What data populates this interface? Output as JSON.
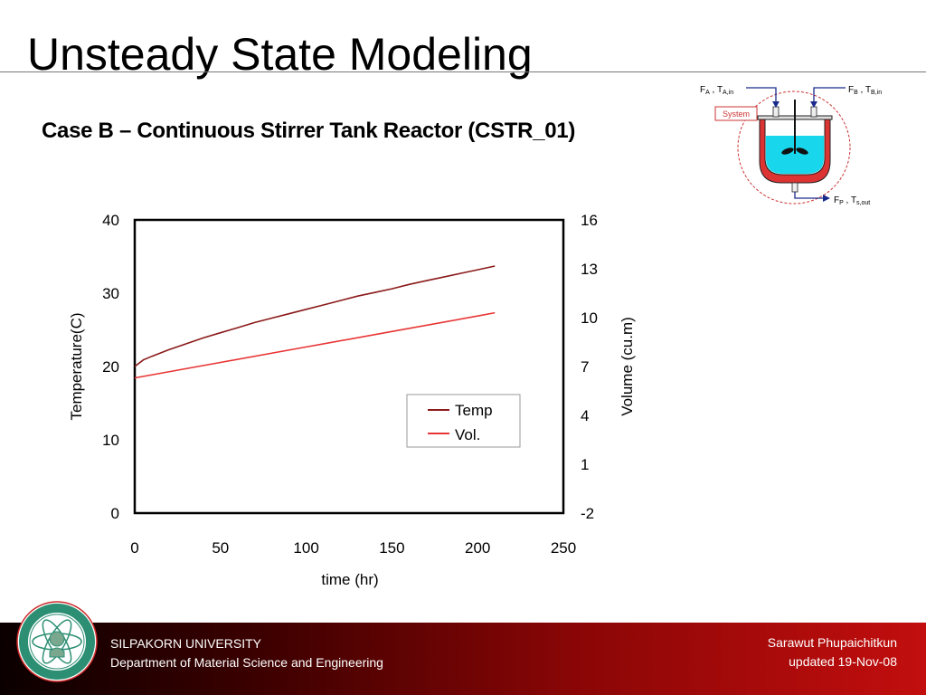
{
  "slide": {
    "title": "Unsteady State Modeling",
    "subtitle": "Case B – Continuous Stirrer Tank Reactor (CSTR_01)"
  },
  "diagram": {
    "feed_a": {
      "F": "F",
      "F_sub": "A",
      "T": "T",
      "T_sub": "A,in"
    },
    "feed_b": {
      "F": "F",
      "F_sub": "B",
      "T": "T",
      "T_sub": "B,in"
    },
    "product": {
      "F": "F",
      "F_sub": "P",
      "T": "T",
      "T_sub": "s,out"
    },
    "system_label": "System",
    "colors": {
      "liquid": "#18d7ec",
      "jacket": "#dd3333",
      "arrow": "#1a2a8c",
      "boundary": "#cc3333"
    }
  },
  "chart_data": {
    "type": "line",
    "xlabel": "time (hr)",
    "ylabel": "Temperature(C)",
    "y2label": "Volume (cu.m)",
    "xlim": [
      0,
      250
    ],
    "ylim": [
      0,
      40
    ],
    "y2lim": [
      -2,
      16
    ],
    "x_ticks": [
      0,
      50,
      100,
      150,
      200,
      250
    ],
    "y_ticks": [
      0,
      10,
      20,
      30,
      40
    ],
    "y2_ticks": [
      "-2",
      "1",
      "4",
      "7",
      "10",
      "13",
      "16"
    ],
    "grid": false,
    "legend": "center-right",
    "series": [
      {
        "name": "Temp",
        "axis": "left",
        "color": "#8b1a1a",
        "x": [
          0,
          5,
          10,
          20,
          30,
          40,
          50,
          60,
          70,
          80,
          90,
          100,
          110,
          120,
          130,
          140,
          150,
          160,
          170,
          180,
          190,
          200,
          210
        ],
        "values": [
          20.0,
          20.9,
          21.4,
          22.3,
          23.1,
          23.9,
          24.6,
          25.3,
          26.0,
          26.6,
          27.2,
          27.8,
          28.4,
          29.0,
          29.6,
          30.1,
          30.6,
          31.2,
          31.7,
          32.2,
          32.7,
          33.2,
          33.7
        ]
      },
      {
        "name": "Vol.",
        "axis": "right",
        "color": "#e83535",
        "x": [
          0,
          50,
          100,
          150,
          200,
          210
        ],
        "values": [
          6.3,
          7.25,
          8.2,
          9.15,
          10.1,
          10.3
        ]
      }
    ]
  },
  "footer": {
    "university": "SILPAKORN UNIVERSITY",
    "department": "Department of Material Science and Engineering",
    "author": "Sarawut Phupaichitkun",
    "updated": "updated  19-Nov-08"
  },
  "logo": {
    "icon": "silpakorn-university-seal-icon",
    "colors": {
      "ring": "#2c8f73",
      "border": "#cc2a2a"
    }
  }
}
